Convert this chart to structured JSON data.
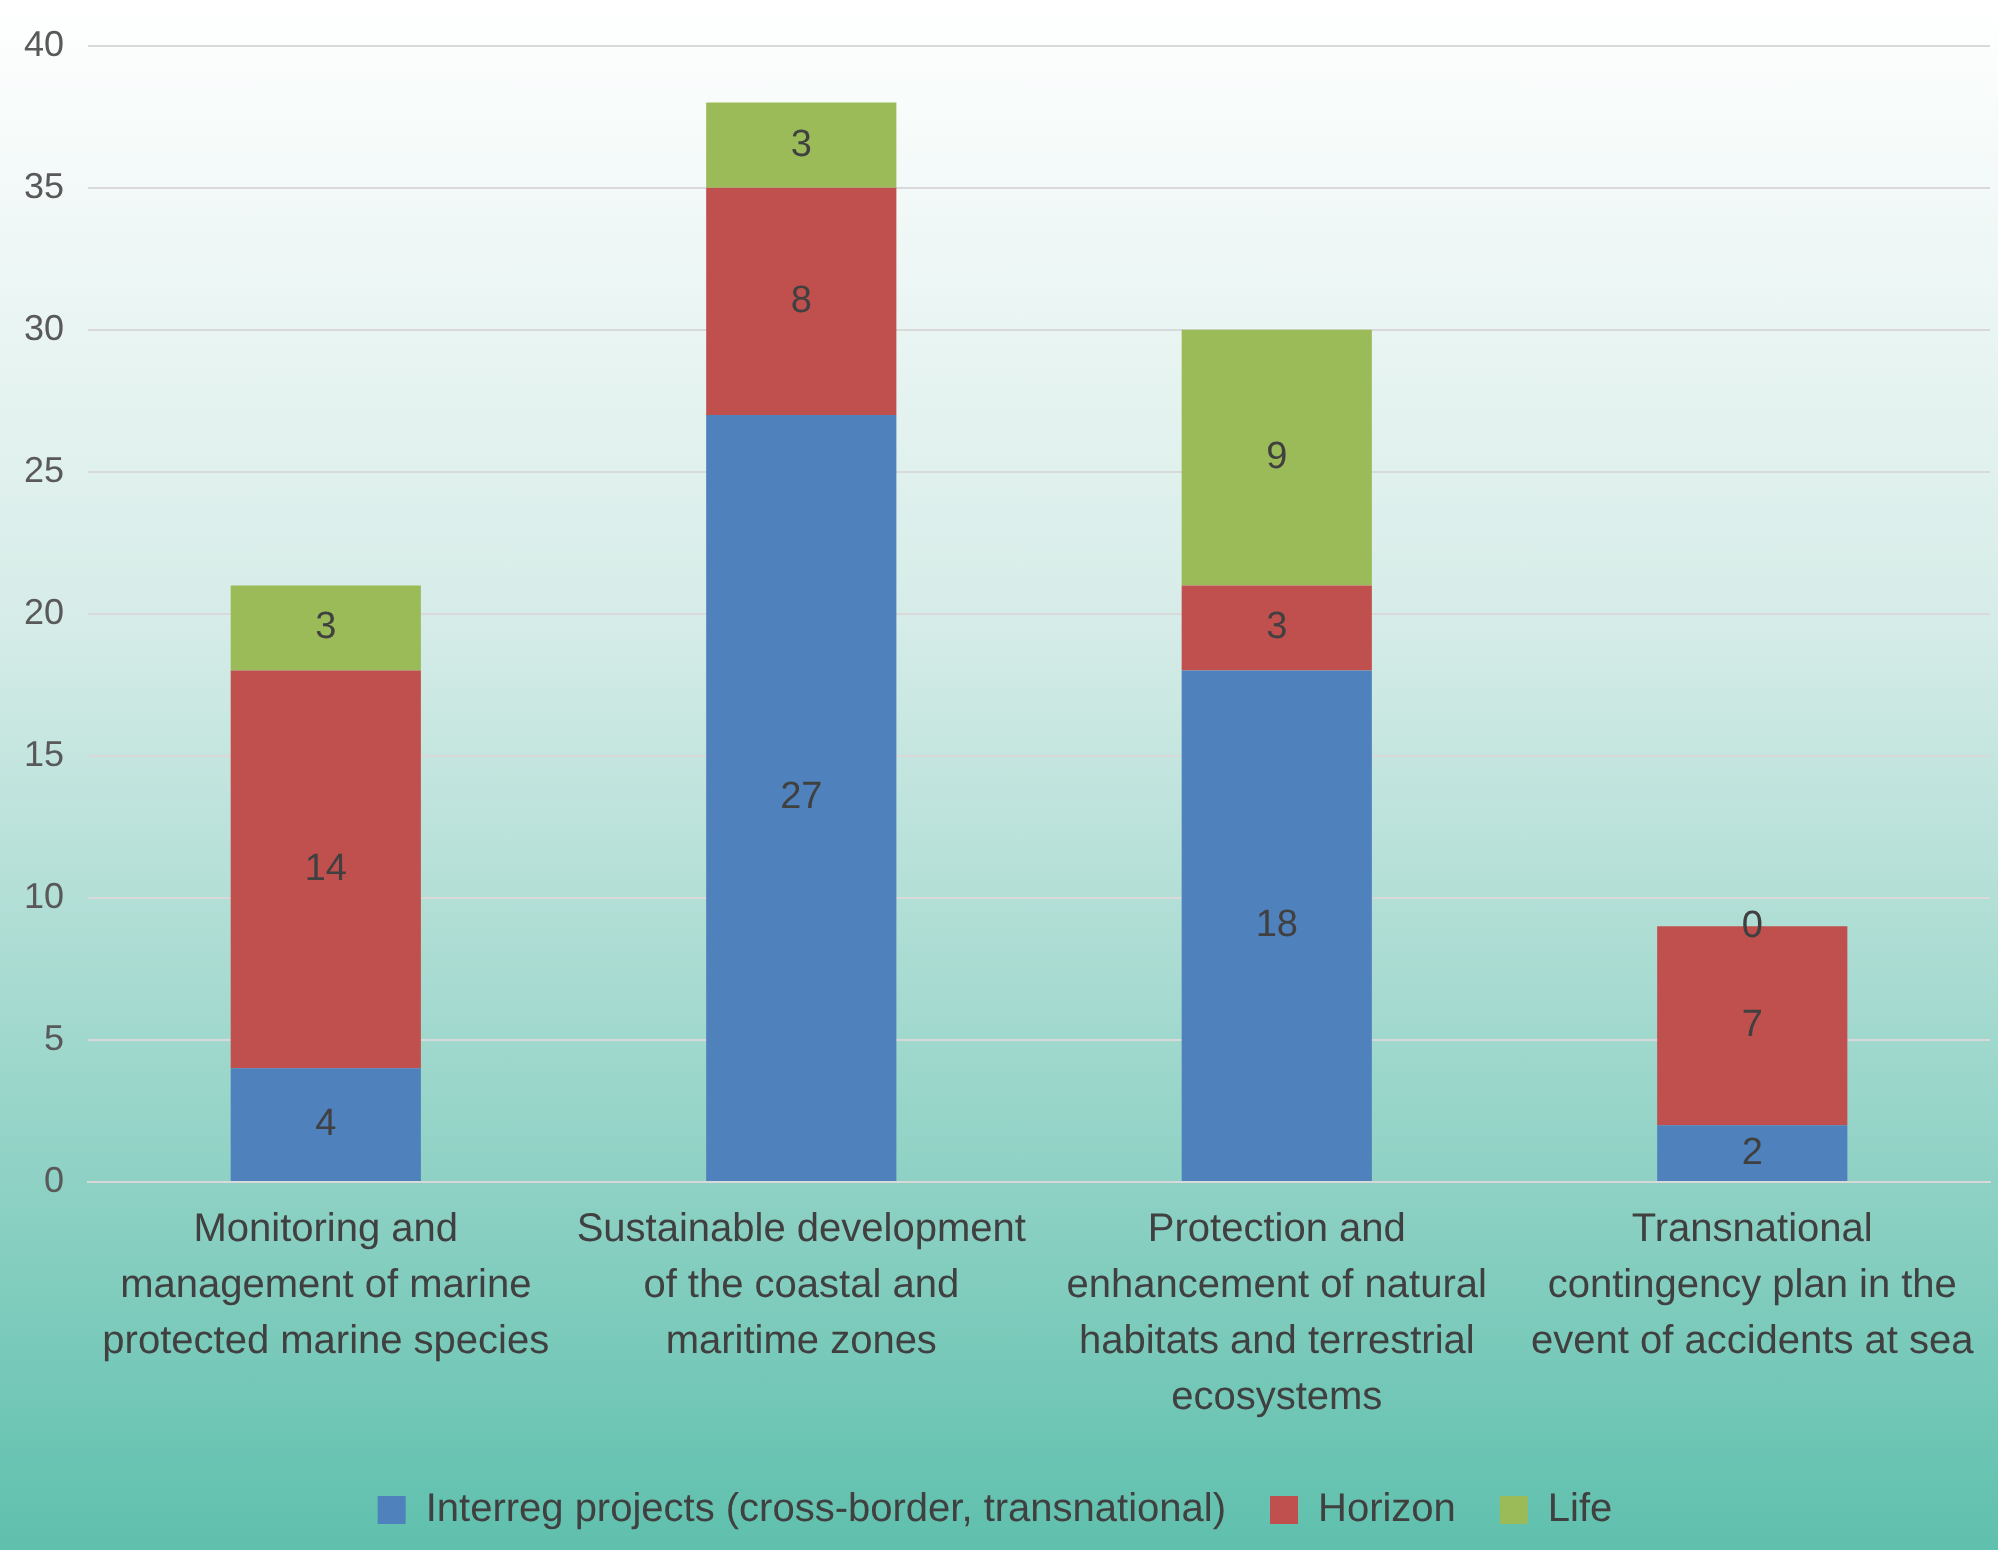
{
  "chart_data": {
    "type": "bar",
    "stacked": true,
    "categories": [
      "Monitoring and management of marine protected marine species",
      "Sustainable development of the coastal and maritime zones",
      "Protection and enhancement of natural habitats and terrestrial ecosystems",
      "Transnational contingency plan in the event of accidents at sea"
    ],
    "series": [
      {
        "name": "Interreg projects (cross-border, transnational)",
        "color": "#4f81bd",
        "values": [
          4,
          27,
          18,
          2
        ]
      },
      {
        "name": "Horizon",
        "color": "#c0504d",
        "values": [
          14,
          8,
          3,
          7
        ]
      },
      {
        "name": "Life",
        "color": "#9bbb59",
        "values": [
          3,
          3,
          9,
          0
        ]
      }
    ],
    "ylim": [
      0,
      40
    ],
    "yticks": [
      0,
      5,
      10,
      15,
      20,
      25,
      30,
      35,
      40
    ],
    "grid": "y",
    "legend": "bottom",
    "data_labels": true
  }
}
